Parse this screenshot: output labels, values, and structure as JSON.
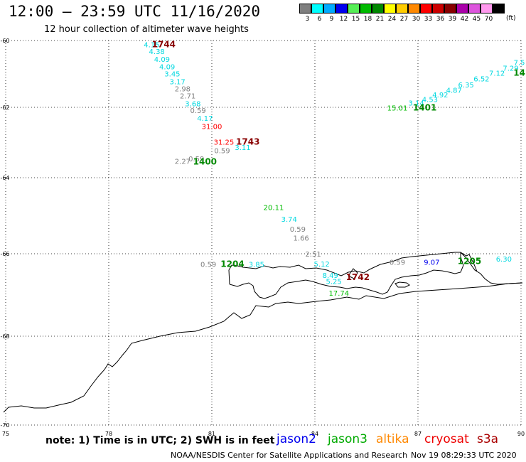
{
  "header": {
    "title": "12:00 – 23:59 UTC 11/16/2020",
    "subtitle": "12 hour collection of altimeter wave heights"
  },
  "color_scale": {
    "unit": "(ft)",
    "swatches": [
      {
        "label": "3",
        "color": "#7f7f7f"
      },
      {
        "label": "6",
        "color": "#00ffff"
      },
      {
        "label": "9",
        "color": "#00aaff"
      },
      {
        "label": "12",
        "color": "#0000ee"
      },
      {
        "label": "15",
        "color": "#55ee55"
      },
      {
        "label": "18",
        "color": "#00bb00"
      },
      {
        "label": "21",
        "color": "#008800"
      },
      {
        "label": "24",
        "color": "#ffff00"
      },
      {
        "label": "27",
        "color": "#ffcc00"
      },
      {
        "label": "30",
        "color": "#ff8800"
      },
      {
        "label": "33",
        "color": "#ff0000"
      },
      {
        "label": "36",
        "color": "#cc0000"
      },
      {
        "label": "39",
        "color": "#880000"
      },
      {
        "label": "42",
        "color": "#aa00aa"
      },
      {
        "label": "45",
        "color": "#dd55dd"
      },
      {
        "label": "70",
        "color": "#ff99ee"
      },
      {
        "label": "",
        "color": "#000000"
      }
    ]
  },
  "map": {
    "lat_labels": [
      "-60",
      "-62",
      "-64",
      "-66",
      "-68",
      "-70"
    ],
    "lon_labels": [
      "75",
      "78",
      "81",
      "84",
      "87",
      "90"
    ],
    "observations": [
      {
        "value": "4.15",
        "lon": 79.25,
        "lat": -60.12,
        "color": "#00d8e0"
      },
      {
        "value": "4.38",
        "lon": 79.4,
        "lat": -60.32,
        "color": "#00d8e0"
      },
      {
        "value": "4.09",
        "lon": 79.55,
        "lat": -60.55,
        "color": "#00d8e0"
      },
      {
        "value": "4.09",
        "lon": 79.7,
        "lat": -60.78,
        "color": "#00d8e0"
      },
      {
        "value": "3.45",
        "lon": 79.85,
        "lat": -60.99,
        "color": "#00d8e0"
      },
      {
        "value": "3.17",
        "lon": 80.0,
        "lat": -61.22,
        "color": "#00d8e0"
      },
      {
        "value": "2.98",
        "lon": 80.15,
        "lat": -61.44,
        "color": "#7f7f7f"
      },
      {
        "value": "2.71",
        "lon": 80.3,
        "lat": -61.65,
        "color": "#7f7f7f"
      },
      {
        "value": "3.68",
        "lon": 80.45,
        "lat": -61.88,
        "color": "#00d8e0"
      },
      {
        "value": "0.59",
        "lon": 80.6,
        "lat": -62.08,
        "color": "#7f7f7f"
      },
      {
        "value": "4.17",
        "lon": 80.8,
        "lat": -62.3,
        "color": "#00d8e0"
      },
      {
        "value": "31.00",
        "lon": 81.0,
        "lat": -62.54,
        "color": "#ff0000"
      },
      {
        "value": "31.25",
        "lon": 81.35,
        "lat": -62.98,
        "color": "#ff0000"
      },
      {
        "value": "3.11",
        "lon": 81.9,
        "lat": -63.13,
        "color": "#00d8e0"
      },
      {
        "value": "0.59",
        "lon": 81.3,
        "lat": -63.22,
        "color": "#7f7f7f"
      },
      {
        "value": "2.27",
        "lon": 80.15,
        "lat": -63.53,
        "color": "#7f7f7f"
      },
      {
        "value": "0.59",
        "lon": 80.55,
        "lat": -63.45,
        "color": "#7f7f7f"
      },
      {
        "value": "20.11",
        "lon": 82.8,
        "lat": -64.78,
        "color": "#00bb00"
      },
      {
        "value": "3.74",
        "lon": 83.25,
        "lat": -65.08,
        "color": "#00d8e0"
      },
      {
        "value": "0.59",
        "lon": 83.5,
        "lat": -65.35,
        "color": "#7f7f7f"
      },
      {
        "value": "1.66",
        "lon": 83.6,
        "lat": -65.58,
        "color": "#7f7f7f"
      },
      {
        "value": "2.51",
        "lon": 83.95,
        "lat": -66.0,
        "color": "#7f7f7f"
      },
      {
        "value": "5.12",
        "lon": 84.2,
        "lat": -66.24,
        "color": "#00d8e0"
      },
      {
        "value": "8.49",
        "lon": 84.45,
        "lat": -66.52,
        "color": "#00d8e0"
      },
      {
        "value": "5.25",
        "lon": 84.55,
        "lat": -66.66,
        "color": "#00d8e0"
      },
      {
        "value": "17.74",
        "lon": 84.7,
        "lat": -66.95,
        "color": "#00bb00"
      },
      {
        "value": "0.59",
        "lon": 80.9,
        "lat": -66.25,
        "color": "#7f7f7f"
      },
      {
        "value": "3.85",
        "lon": 82.3,
        "lat": -66.25,
        "color": "#00d8e0"
      },
      {
        "value": "0.59",
        "lon": 86.4,
        "lat": -66.2,
        "color": "#7f7f7f"
      },
      {
        "value": "9.07",
        "lon": 87.4,
        "lat": -66.2,
        "color": "#0000ee"
      },
      {
        "value": "6.30",
        "lon": 89.5,
        "lat": -66.12,
        "color": "#00d8e0"
      },
      {
        "value": "15.01",
        "lon": 86.4,
        "lat": -62.01,
        "color": "#00bb00"
      },
      {
        "value": "3.14",
        "lon": 86.95,
        "lat": -61.86,
        "color": "#00d8e0"
      },
      {
        "value": "4.53",
        "lon": 87.35,
        "lat": -61.76,
        "color": "#00d8e0"
      },
      {
        "value": "4.92",
        "lon": 87.65,
        "lat": -61.62,
        "color": "#00d8e0"
      },
      {
        "value": "4.87",
        "lon": 88.05,
        "lat": -61.48,
        "color": "#00d8e0"
      },
      {
        "value": "6.35",
        "lon": 88.4,
        "lat": -61.32,
        "color": "#00d8e0"
      },
      {
        "value": "6.52",
        "lon": 88.85,
        "lat": -61.14,
        "color": "#00d8e0"
      },
      {
        "value": "7.12",
        "lon": 89.3,
        "lat": -60.97,
        "color": "#00d8e0"
      },
      {
        "value": "7.29",
        "lon": 89.7,
        "lat": -60.82,
        "color": "#00d8e0"
      },
      {
        "value": "7.5",
        "lon": 89.95,
        "lat": -60.65,
        "color": "#00d8e0"
      }
    ],
    "passes": [
      {
        "label": "1744",
        "lon": 79.6,
        "lat": -60.12,
        "color": "#880000"
      },
      {
        "label": "1743",
        "lon": 82.05,
        "lat": -62.98,
        "color": "#880000"
      },
      {
        "label": "1400",
        "lon": 80.8,
        "lat": -63.55,
        "color": "#008800"
      },
      {
        "label": "1401",
        "lon": 87.2,
        "lat": -62.01,
        "color": "#008800"
      },
      {
        "label": "1204",
        "lon": 81.6,
        "lat": -66.25,
        "color": "#008800"
      },
      {
        "label": "1742",
        "lon": 85.25,
        "lat": -66.57,
        "color": "#880000"
      },
      {
        "label": "1205",
        "lon": 88.5,
        "lat": -66.18,
        "color": "#008800"
      },
      {
        "label": "14",
        "lon": 89.95,
        "lat": -60.97,
        "color": "#008800"
      }
    ]
  },
  "footer": {
    "note": "note: 1) Time is in UTC; 2) SWH is in feet",
    "satellites": [
      {
        "name": "jason2",
        "color": "#0000ee"
      },
      {
        "name": "jason3",
        "color": "#00aa00"
      },
      {
        "name": "altika",
        "color": "#ff8800"
      },
      {
        "name": "cryosat",
        "color": "#ee0000"
      },
      {
        "name": "s3a",
        "color": "#aa0000"
      }
    ],
    "credit": "NOAA/NESDIS Center for Satellite Applications and Research",
    "timestamp": "Nov 19 08:29:33 UTC 2020"
  }
}
